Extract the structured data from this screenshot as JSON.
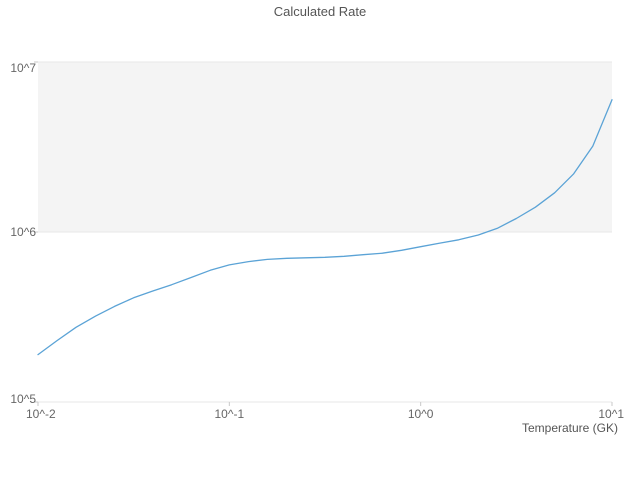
{
  "chart_data": {
    "type": "line",
    "title": "Calculated Rate",
    "xlabel": "Temperature (GK)",
    "ylabel": "",
    "x_scale": "log",
    "y_scale": "log",
    "xlim": [
      0.01,
      10
    ],
    "ylim": [
      100000.0,
      10000000.0
    ],
    "grid": "horizontal-only",
    "legend": "none",
    "x_tick_values": [
      0.01,
      0.1,
      1,
      10
    ],
    "x_tick_labels": [
      "10^-2",
      "10^-1",
      "10^0",
      "10^1"
    ],
    "y_tick_values": [
      100000.0,
      1000000.0,
      10000000.0
    ],
    "y_tick_labels": [
      "10^5",
      "10^6",
      "10^7"
    ],
    "shaded_band": {
      "y_from": 1000000.0,
      "y_to": 10000000.0,
      "color": "#f4f4f4"
    },
    "colors": {
      "line": "#5ba3d6",
      "gridline": "#e7e7e7",
      "band_edge": "#e0e0e0",
      "tick": "#c9c9c9",
      "title_text": "#555555",
      "tick_text": "#666666"
    },
    "series": [
      {
        "name": "calculated-rate",
        "x": [
          0.01,
          0.0126,
          0.0158,
          0.02,
          0.0251,
          0.0316,
          0.0398,
          0.05,
          0.0631,
          0.0794,
          0.1,
          0.126,
          0.158,
          0.2,
          0.251,
          0.316,
          0.398,
          0.5,
          0.631,
          0.794,
          1.0,
          1.26,
          1.58,
          2.0,
          2.51,
          3.16,
          3.98,
          5.01,
          6.31,
          7.94,
          10.0
        ],
        "y": [
          190000.0,
          230000.0,
          275000.0,
          320000.0,
          365000.0,
          410000.0,
          450000.0,
          490000.0,
          540000.0,
          595000.0,
          640000.0,
          670000.0,
          690000.0,
          700000.0,
          705000.0,
          710000.0,
          720000.0,
          735000.0,
          750000.0,
          780000.0,
          820000.0,
          860000.0,
          900000.0,
          960000.0,
          1050000.0,
          1200000.0,
          1400000.0,
          1700000.0,
          2200000.0,
          3200000.0,
          6000000.0
        ]
      }
    ]
  }
}
